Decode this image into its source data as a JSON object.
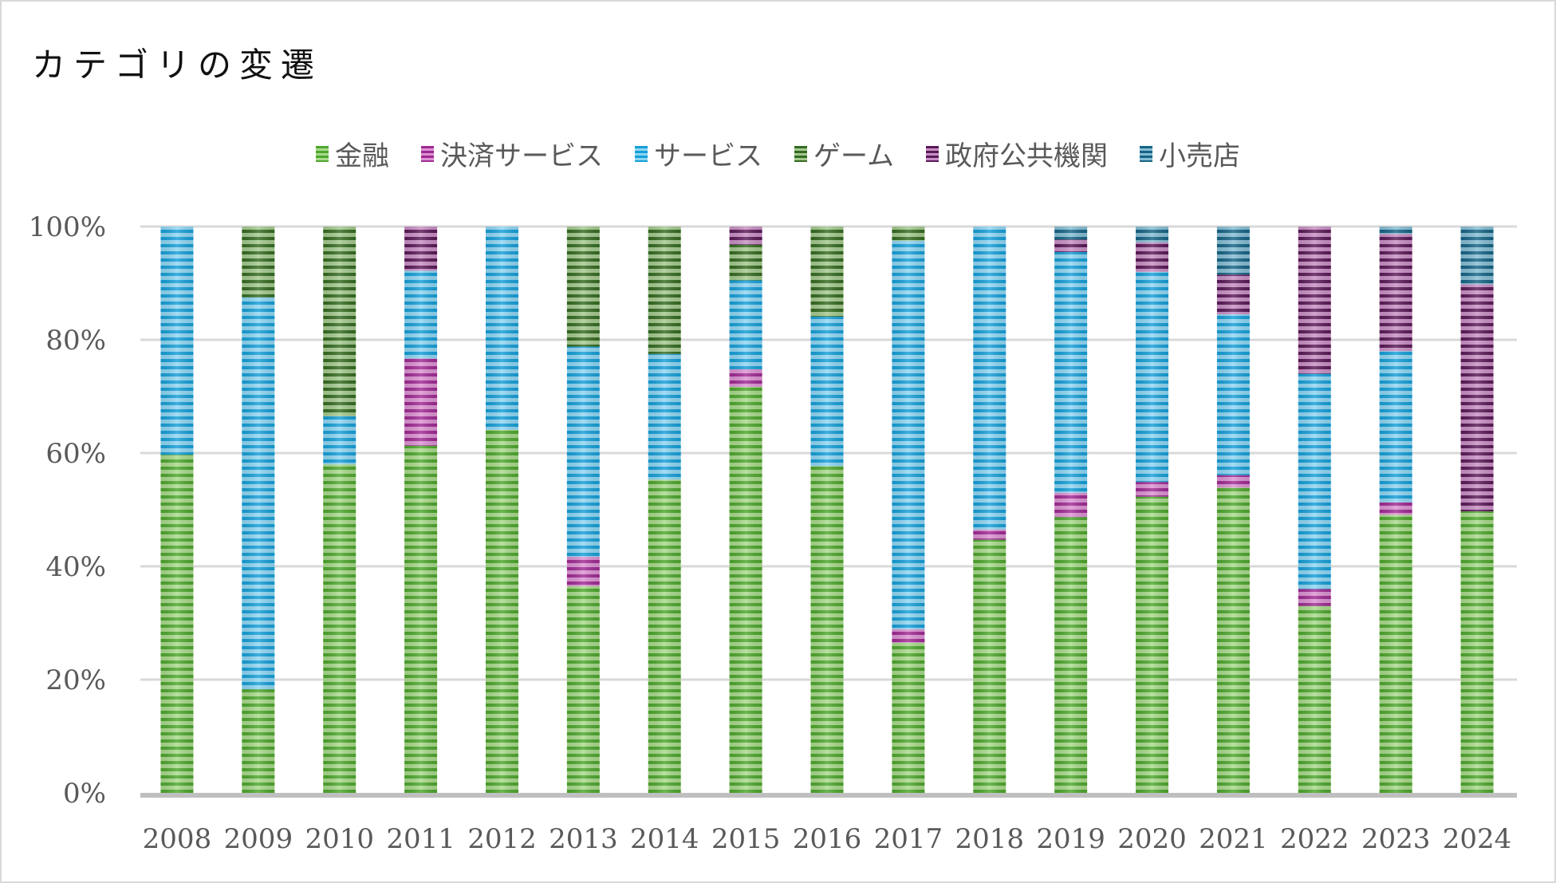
{
  "chart_data": {
    "type": "bar",
    "stacked": "percent",
    "title": "カテゴリの変遷",
    "xlabel": "",
    "ylabel": "",
    "ylim": [
      0,
      100
    ],
    "yticks": [
      "0%",
      "20%",
      "40%",
      "60%",
      "80%",
      "100%"
    ],
    "grid": true,
    "legend_position": "top",
    "categories": [
      "2008",
      "2009",
      "2010",
      "2011",
      "2012",
      "2013",
      "2014",
      "2015",
      "2016",
      "2017",
      "2018",
      "2019",
      "2020",
      "2021",
      "2022",
      "2023",
      "2024"
    ],
    "series": [
      {
        "name": "金融",
        "color": "#4ea72e",
        "light": "#a9da8c",
        "values": [
          59.7,
          18.3,
          58.0,
          61.3,
          64.1,
          36.5,
          55.3,
          71.7,
          57.7,
          26.5,
          44.7,
          48.7,
          52.3,
          53.9,
          33.0,
          49.1,
          49.7
        ]
      },
      {
        "name": "決済サービス",
        "color": "#a02b93",
        "light": "#dc93d3",
        "values": [
          0,
          0,
          0,
          15.4,
          0,
          5.2,
          0,
          3.1,
          0,
          2.4,
          1.8,
          4.3,
          2.6,
          2.2,
          3.0,
          2.2,
          0
        ]
      },
      {
        "name": "サービス",
        "color": "#169fd8",
        "light": "#8fd6f3",
        "values": [
          40.3,
          69.2,
          8.5,
          15.5,
          35.9,
          37.1,
          22.2,
          15.7,
          26.4,
          68.6,
          53.5,
          42.5,
          37.1,
          28.4,
          38.0,
          26.7,
          0
        ]
      },
      {
        "name": "ゲーム",
        "color": "#356b21",
        "light": "#a4c98f",
        "values": [
          0,
          12.5,
          33.5,
          0,
          0,
          21.2,
          22.5,
          6.3,
          15.9,
          2.5,
          0,
          0,
          0,
          0,
          0,
          0,
          0
        ]
      },
      {
        "name": "政府公共機関",
        "color": "#5a1a57",
        "light": "#c88fc4",
        "values": [
          0,
          0,
          0,
          7.8,
          0,
          0,
          0,
          3.2,
          0,
          0,
          0,
          2.2,
          5.2,
          7.0,
          26.0,
          20.7,
          40.1
        ]
      },
      {
        "name": "小売店",
        "color": "#166485",
        "light": "#86bdd4",
        "values": [
          0,
          0,
          0,
          0,
          0,
          0,
          0,
          0,
          0,
          0,
          0,
          2.3,
          2.8,
          8.5,
          0,
          1.3,
          10.2
        ]
      }
    ]
  }
}
